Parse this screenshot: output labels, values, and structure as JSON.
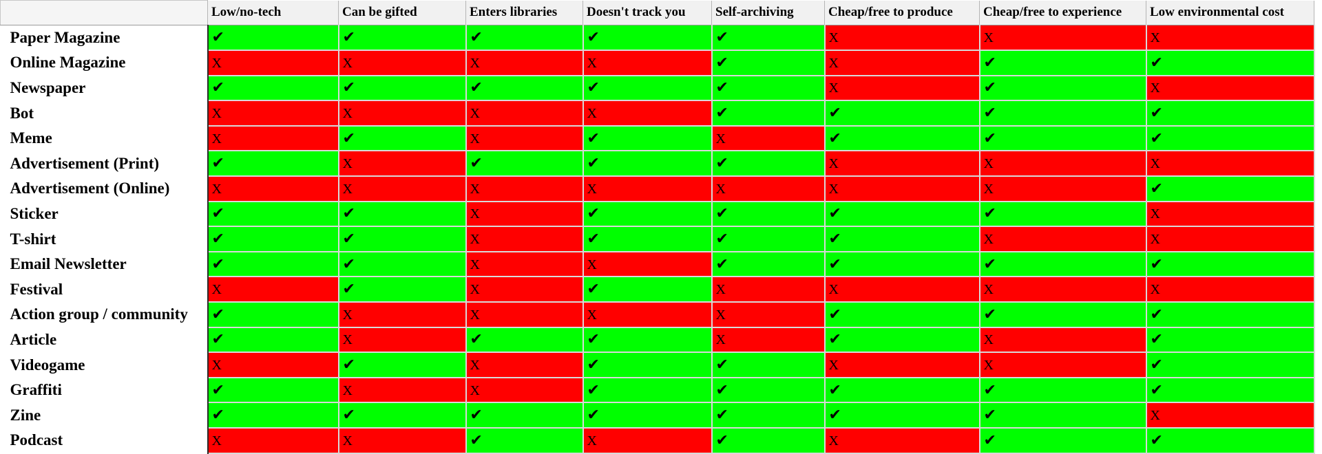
{
  "table": {
    "columns": [
      "Low/no-tech",
      "Can be gifted",
      "Enters libraries",
      "Doesn't track you",
      "Self-archiving",
      "Cheap/free to produce",
      "Cheap/free to experience",
      "Low environmental cost"
    ],
    "marks": {
      "yes": "✔",
      "no": "X"
    },
    "colors": {
      "yes": "#00ff00",
      "no": "#ff0000"
    },
    "rows": [
      {
        "label": "Paper Magazine",
        "values": [
          true,
          true,
          true,
          true,
          true,
          false,
          false,
          false
        ]
      },
      {
        "label": "Online Magazine",
        "values": [
          false,
          false,
          false,
          false,
          true,
          false,
          true,
          true
        ]
      },
      {
        "label": "Newspaper",
        "values": [
          true,
          true,
          true,
          true,
          true,
          false,
          true,
          false
        ]
      },
      {
        "label": "Bot",
        "values": [
          false,
          false,
          false,
          false,
          true,
          true,
          true,
          true
        ]
      },
      {
        "label": "Meme",
        "values": [
          false,
          true,
          false,
          true,
          false,
          true,
          true,
          true
        ]
      },
      {
        "label": "Advertisement (Print)",
        "values": [
          true,
          false,
          true,
          true,
          true,
          false,
          false,
          false
        ]
      },
      {
        "label": "Advertisement (Online)",
        "values": [
          false,
          false,
          false,
          false,
          false,
          false,
          false,
          true
        ]
      },
      {
        "label": "Sticker",
        "values": [
          true,
          true,
          false,
          true,
          true,
          true,
          true,
          false
        ]
      },
      {
        "label": "T-shirt",
        "values": [
          true,
          true,
          false,
          true,
          true,
          true,
          false,
          false
        ]
      },
      {
        "label": "Email Newsletter",
        "values": [
          true,
          true,
          false,
          false,
          true,
          true,
          true,
          true
        ]
      },
      {
        "label": "Festival",
        "values": [
          false,
          true,
          false,
          true,
          false,
          false,
          false,
          false
        ]
      },
      {
        "label": "Action group / community",
        "values": [
          true,
          false,
          false,
          false,
          false,
          true,
          true,
          true
        ]
      },
      {
        "label": "Article",
        "values": [
          true,
          false,
          true,
          true,
          false,
          true,
          false,
          true
        ]
      },
      {
        "label": "Videogame",
        "values": [
          false,
          true,
          false,
          true,
          true,
          false,
          false,
          true
        ]
      },
      {
        "label": "Graffiti",
        "values": [
          true,
          false,
          false,
          true,
          true,
          true,
          true,
          true
        ]
      },
      {
        "label": "Zine",
        "values": [
          true,
          true,
          true,
          true,
          true,
          true,
          true,
          false
        ]
      },
      {
        "label": "Podcast",
        "values": [
          false,
          false,
          true,
          false,
          true,
          false,
          true,
          true
        ]
      }
    ]
  }
}
